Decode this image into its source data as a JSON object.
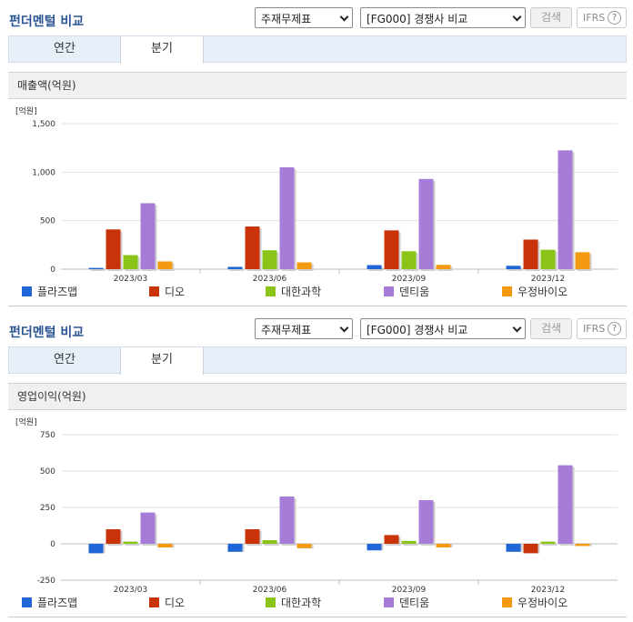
{
  "colors": {
    "s0": "#2066d6",
    "s1": "#c8330a",
    "s2": "#8bc419",
    "s3": "#a77bd8",
    "s4": "#f49a11"
  },
  "panels": [
    {
      "title": "펀더멘털 비교",
      "select1": "주재무제표",
      "select2": "[FG000] 경쟁사 비교",
      "search_label": "검색",
      "ifrs_label": "IFRS",
      "help_label": "?",
      "tabs": [
        {
          "label": "연간"
        },
        {
          "label": "분기"
        }
      ],
      "active_tab": 1,
      "subheader": "매출액(억원)",
      "chart_data": {
        "type": "bar",
        "unit_label": "[억원]",
        "categories": [
          "2023/03",
          "2023/06",
          "2023/09",
          "2023/12"
        ],
        "yticks": [
          "1,500",
          "1,000",
          "500",
          "0"
        ],
        "ylim": [
          0,
          1500
        ],
        "grid": true,
        "legend_position": "bottom",
        "series": [
          {
            "name": "플라즈맵",
            "values": [
              13,
              24,
              42,
              35
            ]
          },
          {
            "name": "디오",
            "values": [
              410,
              440,
              400,
              305
            ]
          },
          {
            "name": "대한과학",
            "values": [
              145,
              195,
              185,
              200
            ]
          },
          {
            "name": "덴티움",
            "values": [
              680,
              1050,
              930,
              1225
            ]
          },
          {
            "name": "우정바이오",
            "values": [
              80,
              70,
              45,
              175
            ]
          }
        ]
      }
    },
    {
      "title": "펀더멘털 비교",
      "select1": "주재무제표",
      "select2": "[FG000] 경쟁사 비교",
      "search_label": "검색",
      "ifrs_label": "IFRS",
      "help_label": "?",
      "tabs": [
        {
          "label": "연간"
        },
        {
          "label": "분기"
        }
      ],
      "active_tab": 1,
      "subheader": "영업이익(억원)",
      "chart_data": {
        "type": "bar",
        "unit_label": "[억원]",
        "categories": [
          "2023/03",
          "2023/06",
          "2023/09",
          "2023/12"
        ],
        "yticks": [
          "750",
          "500",
          "250",
          "0",
          "-250"
        ],
        "ylim": [
          -250,
          750
        ],
        "grid": true,
        "legend_position": "bottom",
        "series": [
          {
            "name": "플라즈맵",
            "values": [
              -65,
              -55,
              -45,
              -55
            ]
          },
          {
            "name": "디오",
            "values": [
              100,
              100,
              60,
              -65
            ]
          },
          {
            "name": "대한과학",
            "values": [
              15,
              25,
              20,
              15
            ]
          },
          {
            "name": "덴티움",
            "values": [
              215,
              325,
              300,
              540
            ]
          },
          {
            "name": "우정바이오",
            "values": [
              -25,
              -30,
              -25,
              -15
            ]
          }
        ]
      }
    }
  ]
}
